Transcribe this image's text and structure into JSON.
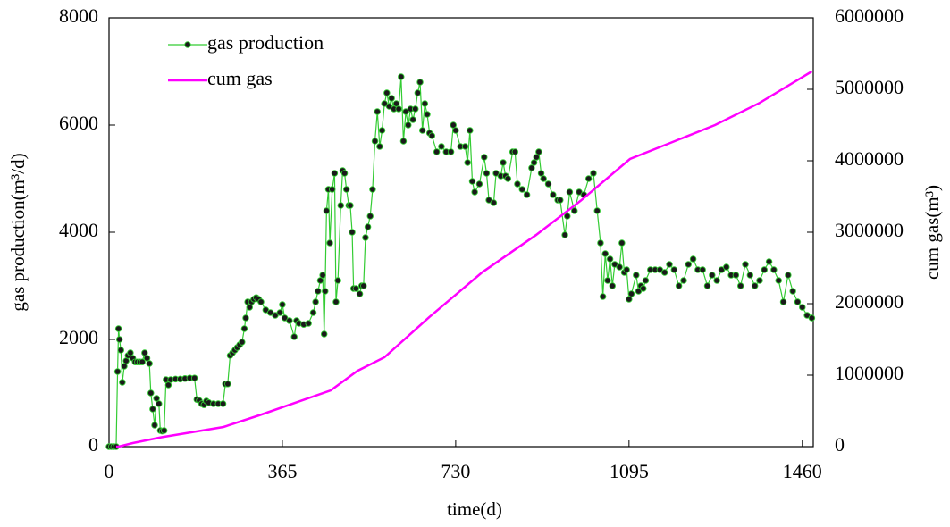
{
  "chart_data": {
    "type": "line",
    "xlabel": "time(d)",
    "ylabel": "gas production(m³/d)",
    "y2label": "cum gas(m³)",
    "xlim": [
      0,
      1483
    ],
    "xticks": [
      0,
      365,
      730,
      1095,
      1460
    ],
    "ylim": [
      0,
      8000
    ],
    "yticks": [
      0,
      2000,
      4000,
      6000,
      8000
    ],
    "y2lim": [
      0,
      6000000
    ],
    "y2ticks": [
      0,
      1000000,
      2000000,
      3000000,
      4000000,
      5000000,
      6000000
    ],
    "legend": "upper left",
    "series": [
      {
        "name": "gas production",
        "color": "#33cc33",
        "marker": true,
        "x": [
          0,
          5,
          10,
          15,
          18,
          20,
          22,
          25,
          28,
          32,
          36,
          40,
          45,
          50,
          55,
          60,
          65,
          70,
          75,
          80,
          85,
          88,
          92,
          96,
          100,
          105,
          108,
          112,
          116,
          120,
          125,
          130,
          140,
          150,
          160,
          170,
          180,
          185,
          190,
          195,
          200,
          205,
          210,
          220,
          230,
          240,
          245,
          250,
          255,
          260,
          265,
          270,
          275,
          280,
          285,
          288,
          292,
          296,
          300,
          305,
          310,
          315,
          320,
          330,
          340,
          350,
          360,
          365,
          370,
          380,
          390,
          395,
          400,
          410,
          420,
          430,
          435,
          440,
          445,
          450,
          453,
          455,
          458,
          462,
          465,
          470,
          475,
          478,
          482,
          488,
          492,
          496,
          500,
          505,
          508,
          512,
          515,
          520,
          528,
          532,
          536,
          540,
          545,
          550,
          555,
          560,
          565,
          570,
          575,
          580,
          585,
          590,
          595,
          600,
          605,
          610,
          615,
          620,
          625,
          630,
          635,
          640,
          645,
          650,
          655,
          660,
          665,
          670,
          675,
          680,
          690,
          700,
          710,
          720,
          725,
          730,
          740,
          750,
          755,
          760,
          765,
          770,
          780,
          790,
          795,
          800,
          810,
          815,
          825,
          830,
          835,
          840,
          850,
          855,
          860,
          870,
          880,
          890,
          895,
          900,
          905,
          910,
          915,
          925,
          935,
          945,
          950,
          960,
          965,
          970,
          980,
          990,
          1000,
          1010,
          1020,
          1028,
          1035,
          1040,
          1045,
          1050,
          1055,
          1060,
          1065,
          1075,
          1080,
          1085,
          1090,
          1095,
          1100,
          1110,
          1115,
          1120,
          1125,
          1130,
          1140,
          1150,
          1160,
          1170,
          1180,
          1190,
          1200,
          1210,
          1220,
          1230,
          1240,
          1250,
          1260,
          1270,
          1280,
          1290,
          1300,
          1310,
          1320,
          1330,
          1340,
          1350,
          1360,
          1370,
          1380,
          1390,
          1400,
          1410,
          1420,
          1430,
          1440,
          1450,
          1460,
          1470,
          1480
        ],
        "values": [
          0,
          0,
          0,
          0,
          1400,
          2200,
          2000,
          1800,
          1200,
          1500,
          1600,
          1700,
          1750,
          1650,
          1580,
          1580,
          1580,
          1580,
          1750,
          1650,
          1550,
          1000,
          700,
          400,
          900,
          800,
          300,
          290,
          300,
          1250,
          1150,
          1250,
          1260,
          1260,
          1270,
          1280,
          1280,
          880,
          860,
          800,
          780,
          850,
          820,
          800,
          800,
          800,
          1170,
          1170,
          1700,
          1750,
          1800,
          1850,
          1900,
          1950,
          2200,
          2400,
          2700,
          2600,
          2700,
          2750,
          2780,
          2750,
          2700,
          2550,
          2500,
          2450,
          2500,
          2650,
          2400,
          2350,
          2050,
          2350,
          2300,
          2280,
          2300,
          2500,
          2700,
          2900,
          3100,
          3200,
          2100,
          2900,
          4400,
          4800,
          3800,
          4800,
          5100,
          2700,
          3100,
          4500,
          5150,
          5100,
          4800,
          4500,
          4500,
          4000,
          2950,
          2950,
          2850,
          3000,
          3000,
          3900,
          4100,
          4300,
          4800,
          5700,
          6250,
          5600,
          5900,
          6400,
          6600,
          6350,
          6500,
          6300,
          6400,
          6300,
          6900,
          5700,
          6250,
          6000,
          6300,
          6100,
          6300,
          6600,
          6800,
          5900,
          6400,
          6200,
          5850,
          5800,
          5500,
          5600,
          5500,
          5500,
          6000,
          5900,
          5600,
          5600,
          5300,
          5900,
          4950,
          4750,
          4900,
          5400,
          5100,
          4600,
          4550,
          5100,
          5050,
          5300,
          5050,
          5000,
          5500,
          5500,
          4900,
          4800,
          4700,
          5200,
          5300,
          5400,
          5500,
          5100,
          5000,
          4900,
          4700,
          4600,
          4600,
          3950,
          4300,
          4750,
          4400,
          4750,
          4700,
          5000,
          5100,
          4400,
          3800,
          2800,
          3600,
          3100,
          3500,
          3000,
          3400,
          3350,
          3800,
          3250,
          3300,
          2750,
          2850,
          3200,
          2900,
          3000,
          2950,
          3100,
          3300,
          3300,
          3300,
          3250,
          3400,
          3300,
          3000,
          3100,
          3400,
          3500,
          3300,
          3300,
          3000,
          3200,
          3100,
          3300,
          3350,
          3200,
          3200,
          3000,
          3400,
          3200,
          3000,
          3100,
          3300,
          3450,
          3300,
          3100,
          2700,
          3200,
          2900,
          2700,
          2600,
          2450,
          2400
        ]
      },
      {
        "name": "cum gas",
        "color": "#ff00ff",
        "axis": "y2",
        "marker": false,
        "x": [
          15,
          20,
          50,
          109,
          241,
          316,
          467,
          523,
          580,
          674,
          786,
          899,
          993,
          1097,
          1182,
          1276,
          1370,
          1480
        ],
        "values": [
          0,
          0,
          50000,
          130000,
          275000,
          437500,
          787500,
          1060000,
          1250000,
          1810000,
          2440000,
          2960000,
          3440000,
          4025000,
          4250000,
          4500000,
          4810000,
          5250000
        ]
      }
    ]
  }
}
